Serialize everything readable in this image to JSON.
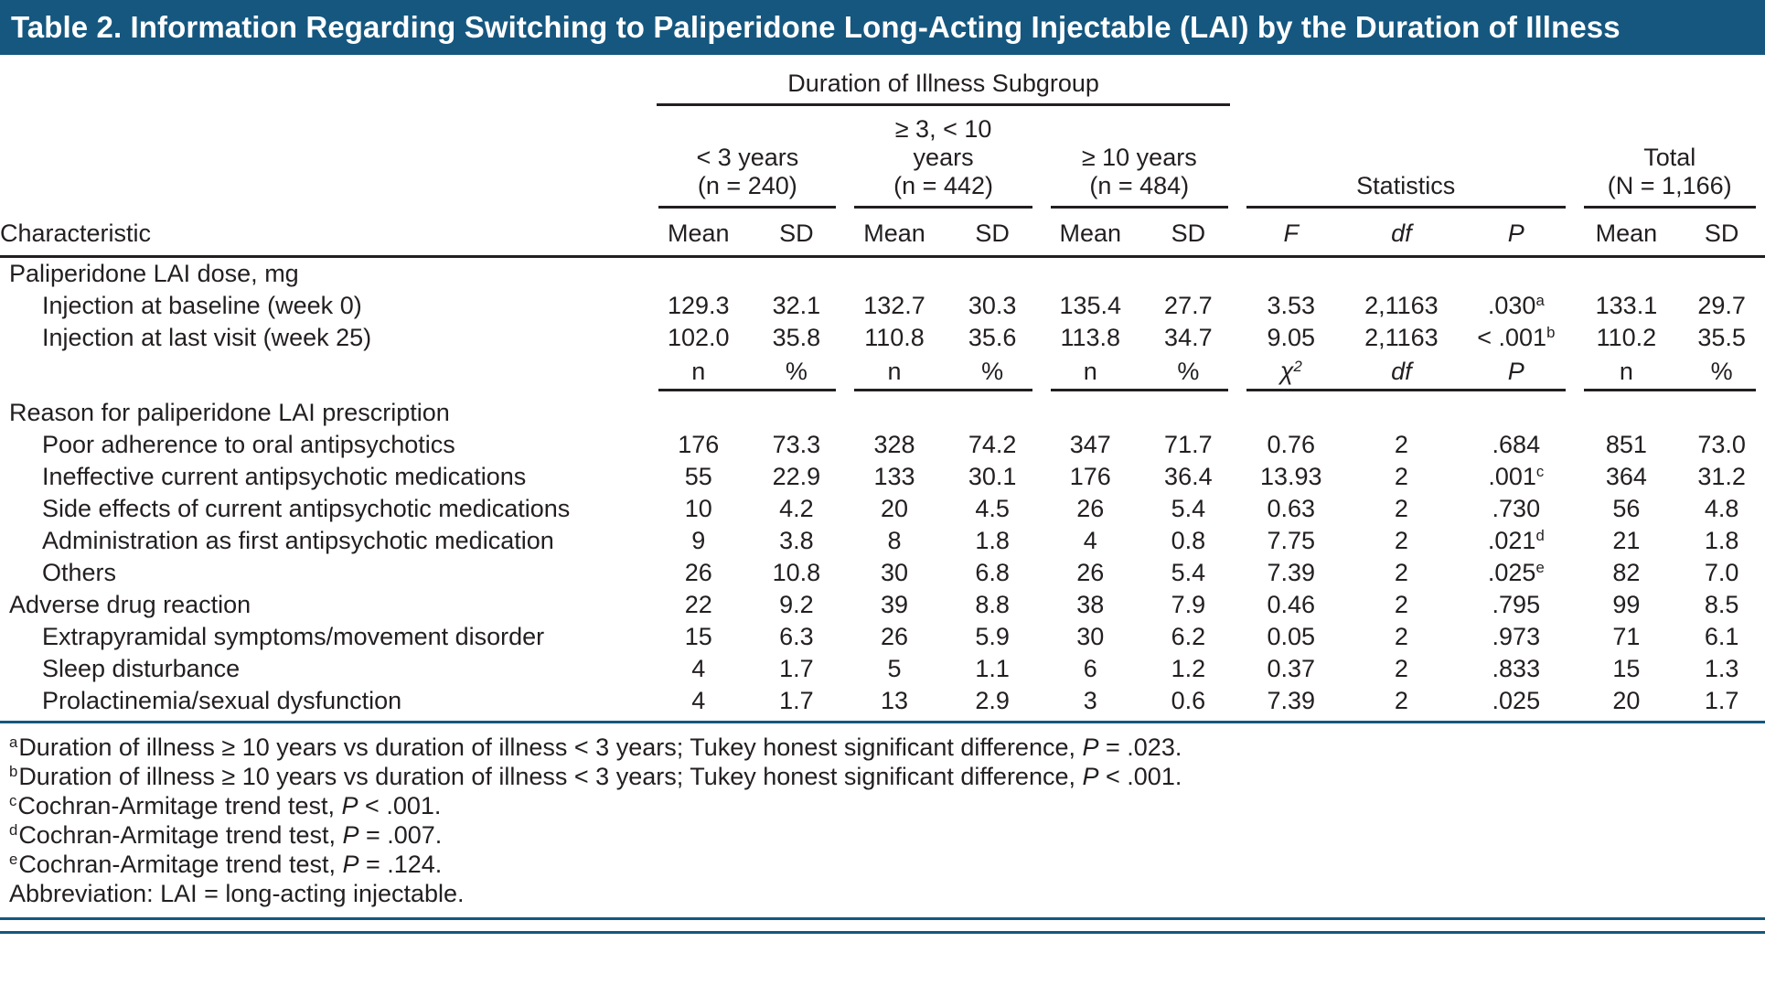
{
  "title": "Table 2. Information Regarding Switching to Paliperidone Long-Acting Injectable (LAI) by the Duration of Illness",
  "colors": {
    "bar": "#15577F",
    "text": "#231F20"
  },
  "header": {
    "subgroup_span": "Duration of Illness Subgroup",
    "characteristic": "Characteristic",
    "groups": [
      {
        "lines": [
          "< 3 years",
          "(n = 240)"
        ]
      },
      {
        "lines": [
          "≥ 3, < 10",
          "years",
          "(n = 442)"
        ]
      },
      {
        "lines": [
          "≥ 10 years",
          "(n = 484)"
        ]
      },
      {
        "lines": [
          "Statistics"
        ]
      },
      {
        "lines": [
          "Total",
          "(N = 1,166)"
        ]
      }
    ],
    "columns": [
      {
        "t": "Mean"
      },
      {
        "t": "SD"
      },
      {
        "t": "Mean"
      },
      {
        "t": "SD"
      },
      {
        "t": "Mean"
      },
      {
        "t": "SD"
      },
      {
        "t": "F",
        "i": true
      },
      {
        "t": "df",
        "i": true
      },
      {
        "t": "P",
        "i": true
      },
      {
        "t": "Mean"
      },
      {
        "t": "SD"
      }
    ]
  },
  "subheader": {
    "columns": [
      {
        "t": "n"
      },
      {
        "t": "%"
      },
      {
        "t": "n"
      },
      {
        "t": "%"
      },
      {
        "t": "n"
      },
      {
        "t": "%"
      },
      {
        "t": "χ",
        "sup": "2",
        "i": true
      },
      {
        "t": "df",
        "i": true
      },
      {
        "t": "P",
        "i": true
      },
      {
        "t": "n"
      },
      {
        "t": "%"
      }
    ]
  },
  "rows": [
    {
      "type": "section",
      "label": "Paliperidone LAI dose, mg"
    },
    {
      "type": "data",
      "indent": 1,
      "label": "Injection at baseline (week 0)",
      "cells": [
        "129.3",
        "32.1",
        "132.7",
        "30.3",
        "135.4",
        "27.7",
        "3.53",
        "2,1163",
        ".030",
        "133.1",
        "29.7"
      ],
      "p_sup": "a"
    },
    {
      "type": "data",
      "indent": 1,
      "label": "Injection at last visit (week 25)",
      "cells": [
        "102.0",
        "35.8",
        "110.8",
        "35.6",
        "113.8",
        "34.7",
        "9.05",
        "2,1163",
        "< .001",
        "110.2",
        "35.5"
      ],
      "p_sup": "b"
    },
    {
      "type": "subheader"
    },
    {
      "type": "section",
      "label": "Reason for paliperidone LAI prescription"
    },
    {
      "type": "data",
      "indent": 1,
      "label": "Poor adherence to oral antipsychotics",
      "cells": [
        "176",
        "73.3",
        "328",
        "74.2",
        "347",
        "71.7",
        "0.76",
        "2",
        ".684",
        "851",
        "73.0"
      ]
    },
    {
      "type": "data",
      "indent": 1,
      "label": "Ineffective current antipsychotic medications",
      "cells": [
        "55",
        "22.9",
        "133",
        "30.1",
        "176",
        "36.4",
        "13.93",
        "2",
        ".001",
        "364",
        "31.2"
      ],
      "p_sup": "c"
    },
    {
      "type": "data",
      "indent": 1,
      "label": "Side effects of current antipsychotic medications",
      "cells": [
        "10",
        "4.2",
        "20",
        "4.5",
        "26",
        "5.4",
        "0.63",
        "2",
        ".730",
        "56",
        "4.8"
      ]
    },
    {
      "type": "data",
      "indent": 1,
      "label": "Administration as first antipsychotic medication",
      "cells": [
        "9",
        "3.8",
        "8",
        "1.8",
        "4",
        "0.8",
        "7.75",
        "2",
        ".021",
        "21",
        "1.8"
      ],
      "p_sup": "d"
    },
    {
      "type": "data",
      "indent": 1,
      "label": "Others",
      "cells": [
        "26",
        "10.8",
        "30",
        "6.8",
        "26",
        "5.4",
        "7.39",
        "2",
        ".025",
        "82",
        "7.0"
      ],
      "p_sup": "e"
    },
    {
      "type": "data",
      "indent": 0,
      "label": "Adverse drug reaction",
      "cells": [
        "22",
        "9.2",
        "39",
        "8.8",
        "38",
        "7.9",
        "0.46",
        "2",
        ".795",
        "99",
        "8.5"
      ]
    },
    {
      "type": "data",
      "indent": 1,
      "label": "Extrapyramidal symptoms/movement disorder",
      "cells": [
        "15",
        "6.3",
        "26",
        "5.9",
        "30",
        "6.2",
        "0.05",
        "2",
        ".973",
        "71",
        "6.1"
      ]
    },
    {
      "type": "data",
      "indent": 1,
      "label": "Sleep disturbance",
      "cells": [
        "4",
        "1.7",
        "5",
        "1.1",
        "6",
        "1.2",
        "0.37",
        "2",
        ".833",
        "15",
        "1.3"
      ]
    },
    {
      "type": "data",
      "indent": 1,
      "label": "Prolactinemia/sexual dysfunction",
      "cells": [
        "4",
        "1.7",
        "13",
        "2.9",
        "3",
        "0.6",
        "7.39",
        "2",
        ".025",
        "20",
        "1.7"
      ]
    }
  ],
  "footnotes": [
    {
      "sup": "a",
      "segments": [
        {
          "t": "Duration of illness ≥ 10 years vs duration of illness < 3 years; Tukey honest significant difference, "
        },
        {
          "t": "P",
          "i": true
        },
        {
          "t": " = .023."
        }
      ]
    },
    {
      "sup": "b",
      "segments": [
        {
          "t": "Duration of illness ≥ 10 years vs duration of illness < 3 years; Tukey honest significant difference, "
        },
        {
          "t": "P",
          "i": true
        },
        {
          "t": " < .001."
        }
      ]
    },
    {
      "sup": "c",
      "segments": [
        {
          "t": "Cochran-Armitage trend test, "
        },
        {
          "t": "P",
          "i": true
        },
        {
          "t": " < .001."
        }
      ]
    },
    {
      "sup": "d",
      "segments": [
        {
          "t": "Cochran-Armitage trend test, "
        },
        {
          "t": "P",
          "i": true
        },
        {
          "t": " = .007."
        }
      ]
    },
    {
      "sup": "e",
      "segments": [
        {
          "t": "Cochran-Armitage trend test, "
        },
        {
          "t": "P",
          "i": true
        },
        {
          "t": " = .124."
        }
      ]
    },
    {
      "segments": [
        {
          "t": "Abbreviation: LAI = long-acting injectable."
        }
      ]
    }
  ]
}
